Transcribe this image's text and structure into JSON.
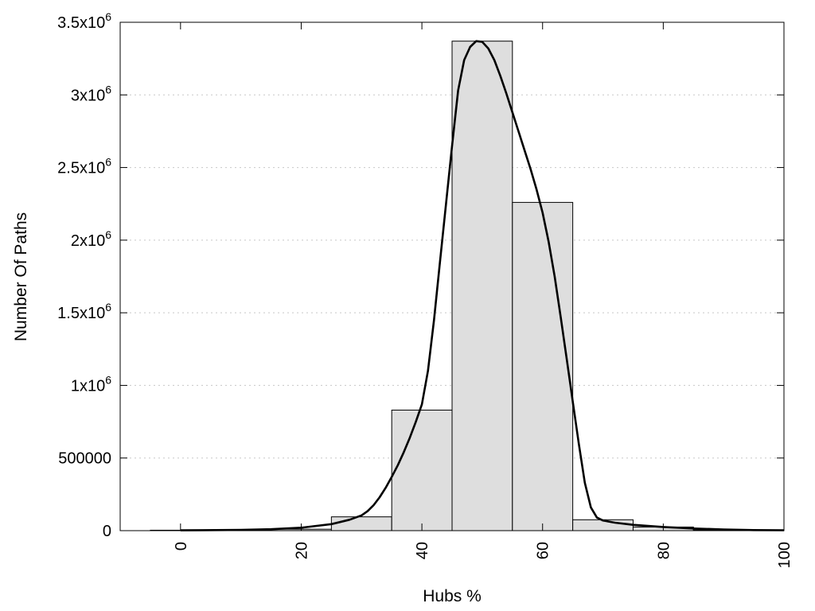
{
  "chart_data": {
    "type": "bar",
    "xlabel": "Hubs %",
    "ylabel": "Number Of Paths",
    "xlim": [
      -10,
      100
    ],
    "ylim": [
      0,
      3500000
    ],
    "grid": "horizontal-dotted",
    "x_ticks": [
      {
        "value": 0,
        "label": "0"
      },
      {
        "value": 20,
        "label": "20"
      },
      {
        "value": 40,
        "label": "40"
      },
      {
        "value": 60,
        "label": "60"
      },
      {
        "value": 80,
        "label": "80"
      },
      {
        "value": 100,
        "label": "100"
      }
    ],
    "y_ticks": [
      {
        "value": 0,
        "base": "0",
        "exp": ""
      },
      {
        "value": 500000,
        "base": "500000",
        "exp": ""
      },
      {
        "value": 1000000,
        "base": "1x10",
        "exp": "6"
      },
      {
        "value": 1500000,
        "base": "1.5x10",
        "exp": "6"
      },
      {
        "value": 2000000,
        "base": "2x10",
        "exp": "6"
      },
      {
        "value": 2500000,
        "base": "2.5x10",
        "exp": "6"
      },
      {
        "value": 3000000,
        "base": "3x10",
        "exp": "6"
      },
      {
        "value": 3500000,
        "base": "3.5x10",
        "exp": "6"
      }
    ],
    "bins": [
      {
        "start": -5,
        "end": 5,
        "value": 3000
      },
      {
        "start": 5,
        "end": 15,
        "value": 3000
      },
      {
        "start": 15,
        "end": 25,
        "value": 10000
      },
      {
        "start": 25,
        "end": 35,
        "value": 95000
      },
      {
        "start": 35,
        "end": 45,
        "value": 830000
      },
      {
        "start": 45,
        "end": 55,
        "value": 3370000
      },
      {
        "start": 55,
        "end": 65,
        "value": 2260000
      },
      {
        "start": 65,
        "end": 75,
        "value": 75000
      },
      {
        "start": 75,
        "end": 85,
        "value": 25000
      },
      {
        "start": 85,
        "end": 95,
        "value": 5000
      },
      {
        "start": 95,
        "end": 100,
        "value": 4000
      }
    ],
    "curve": {
      "x": [
        0,
        10,
        15,
        20,
        25,
        28,
        30,
        31,
        32,
        33,
        34,
        35,
        36,
        37,
        38,
        39,
        40,
        41,
        42,
        43,
        44,
        45,
        46,
        47,
        48,
        49,
        50,
        51,
        52,
        53,
        54,
        55,
        56,
        57,
        58,
        59,
        60,
        61,
        62,
        63,
        64,
        65,
        66,
        67,
        68,
        69,
        70,
        72,
        75,
        80,
        85,
        90,
        95,
        100
      ],
      "y": [
        2000,
        5000,
        10000,
        20000,
        45000,
        75000,
        105000,
        135000,
        175000,
        230000,
        295000,
        370000,
        450000,
        540000,
        640000,
        750000,
        870000,
        1100000,
        1450000,
        1850000,
        2250000,
        2650000,
        3030000,
        3240000,
        3330000,
        3370000,
        3365000,
        3320000,
        3240000,
        3130000,
        3010000,
        2880000,
        2750000,
        2620000,
        2490000,
        2350000,
        2190000,
        1990000,
        1750000,
        1470000,
        1180000,
        890000,
        600000,
        330000,
        160000,
        90000,
        70000,
        55000,
        40000,
        25000,
        15000,
        8000,
        4000,
        3000
      ]
    }
  }
}
